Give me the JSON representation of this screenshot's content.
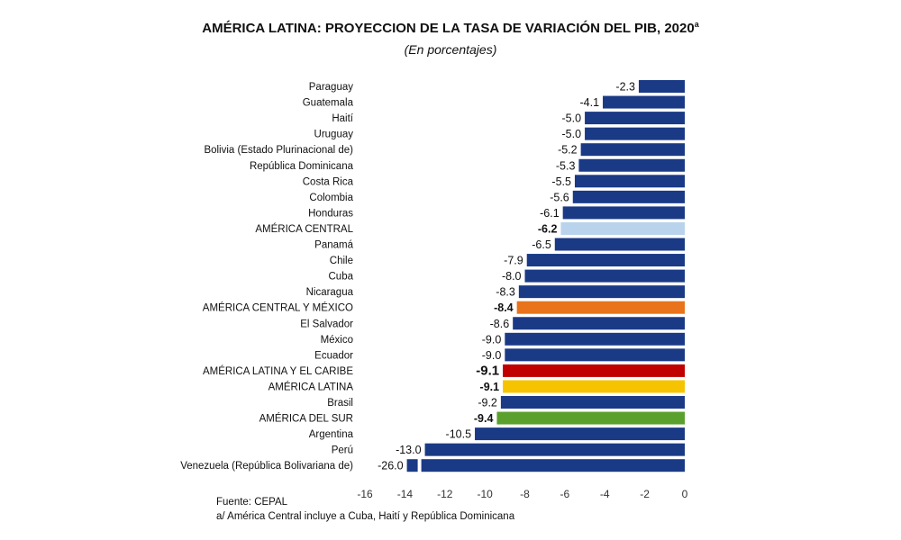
{
  "chart_data": {
    "type": "bar",
    "orientation": "horizontal",
    "title": "AMÉRICA LATINA: PROYECCION DE LA TASA DE VARIACIÓN DEL PIB, 2020",
    "title_superscript": "a",
    "subtitle": "(En porcentajes)",
    "xlim": [
      -16,
      0
    ],
    "xticks": [
      -16,
      -14,
      -12,
      -10,
      -8,
      -6,
      -4,
      -2,
      0
    ],
    "grid": false,
    "legend": "none",
    "axis_break": {
      "category": "Venezuela (República Bolivariana de)"
    },
    "colors": {
      "country": "#1a3a86",
      "america_central": "#b9d3ec",
      "america_central_y_mexico": "#e8731a",
      "america_latina_y_el_caribe": "#c00000",
      "america_latina": "#f6c300",
      "america_del_sur": "#5aa02c"
    },
    "bars": [
      {
        "category": "Paraguay",
        "value": -2.3,
        "label": "-2.3",
        "color": "#1a3a86",
        "bold": false
      },
      {
        "category": "Guatemala",
        "value": -4.1,
        "label": "-4.1",
        "color": "#1a3a86",
        "bold": false
      },
      {
        "category": "Haití",
        "value": -5.0,
        "label": "-5.0",
        "color": "#1a3a86",
        "bold": false
      },
      {
        "category": "Uruguay",
        "value": -5.0,
        "label": "-5.0",
        "color": "#1a3a86",
        "bold": false
      },
      {
        "category": "Bolivia (Estado Plurinacional de)",
        "value": -5.2,
        "label": "-5.2",
        "color": "#1a3a86",
        "bold": false
      },
      {
        "category": "República Dominicana",
        "value": -5.3,
        "label": "-5.3",
        "color": "#1a3a86",
        "bold": false
      },
      {
        "category": "Costa Rica",
        "value": -5.5,
        "label": "-5.5",
        "color": "#1a3a86",
        "bold": false
      },
      {
        "category": "Colombia",
        "value": -5.6,
        "label": "-5.6",
        "color": "#1a3a86",
        "bold": false
      },
      {
        "category": "Honduras",
        "value": -6.1,
        "label": "-6.1",
        "color": "#1a3a86",
        "bold": false
      },
      {
        "category": "AMÉRICA CENTRAL",
        "value": -6.2,
        "label": "-6.2",
        "color": "#b9d3ec",
        "bold": true
      },
      {
        "category": "Panamá",
        "value": -6.5,
        "label": "-6.5",
        "color": "#1a3a86",
        "bold": false
      },
      {
        "category": "Chile",
        "value": -7.9,
        "label": "-7.9",
        "color": "#1a3a86",
        "bold": false
      },
      {
        "category": "Cuba",
        "value": -8.0,
        "label": "-8.0",
        "color": "#1a3a86",
        "bold": false
      },
      {
        "category": "Nicaragua",
        "value": -8.3,
        "label": "-8.3",
        "color": "#1a3a86",
        "bold": false
      },
      {
        "category": "AMÉRICA CENTRAL Y MÉXICO",
        "value": -8.4,
        "label": "-8.4",
        "color": "#e8731a",
        "bold": true
      },
      {
        "category": "El Salvador",
        "value": -8.6,
        "label": "-8.6",
        "color": "#1a3a86",
        "bold": false
      },
      {
        "category": "México",
        "value": -9.0,
        "label": "-9.0",
        "color": "#1a3a86",
        "bold": false
      },
      {
        "category": "Ecuador",
        "value": -9.0,
        "label": "-9.0",
        "color": "#1a3a86",
        "bold": false
      },
      {
        "category": "AMÉRICA LATINA Y EL CARIBE",
        "value": -9.1,
        "label": "-9.1",
        "color": "#c00000",
        "bold": true,
        "large": true
      },
      {
        "category": "AMÉRICA LATINA",
        "value": -9.1,
        "label": "-9.1",
        "color": "#f6c300",
        "bold": true
      },
      {
        "category": "Brasil",
        "value": -9.2,
        "label": "-9.2",
        "color": "#1a3a86",
        "bold": false
      },
      {
        "category": "AMÉRICA DEL SUR",
        "value": -9.4,
        "label": "-9.4",
        "color": "#5aa02c",
        "bold": true
      },
      {
        "category": "Argentina",
        "value": -10.5,
        "label": "-10.5",
        "color": "#1a3a86",
        "bold": false
      },
      {
        "category": "Perú",
        "value": -13.0,
        "label": "-13.0",
        "color": "#1a3a86",
        "bold": false
      },
      {
        "category": "Venezuela (República Bolivariana de)",
        "value": -26.0,
        "label": "-26.0",
        "color": "#1a3a86",
        "bold": false
      }
    ]
  },
  "footnotes": {
    "source": "Fuente: CEPAL",
    "note": "a/ América Central incluye a Cuba, Haití y República Dominicana"
  }
}
